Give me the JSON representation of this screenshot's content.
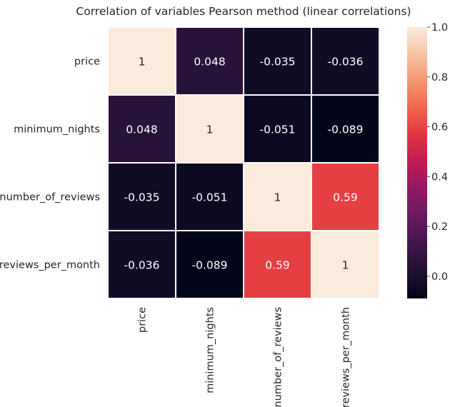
{
  "chart_data": {
    "type": "heatmap",
    "title": "Correlation of variables Pearson method (linear correlations)",
    "variables": [
      "price",
      "minimum_nights",
      "number_of_reviews",
      "reviews_per_month"
    ],
    "matrix": [
      [
        1,
        0.048,
        -0.035,
        -0.036
      ],
      [
        0.048,
        1,
        -0.051,
        -0.089
      ],
      [
        -0.035,
        -0.051,
        1,
        0.59
      ],
      [
        -0.036,
        -0.089,
        0.59,
        1
      ]
    ],
    "annotations": [
      [
        "1",
        "0.048",
        "-0.035",
        "-0.036"
      ],
      [
        "0.048",
        "1",
        "-0.051",
        "-0.089"
      ],
      [
        "-0.035",
        "-0.051",
        "1",
        "0.59"
      ],
      [
        "-0.036",
        "-0.089",
        "0.59",
        "1"
      ]
    ],
    "colorbar": {
      "vmin": -0.089,
      "vmax": 1,
      "ticks": [
        0.0,
        0.2,
        0.4,
        0.6,
        0.8,
        1.0
      ],
      "tick_labels": [
        "0.0",
        "0.2",
        "0.4",
        "0.6",
        "0.8",
        "1.0"
      ],
      "colormap": "rocket",
      "placement": "right"
    },
    "xlabel": "",
    "ylabel": "",
    "grid": false
  }
}
